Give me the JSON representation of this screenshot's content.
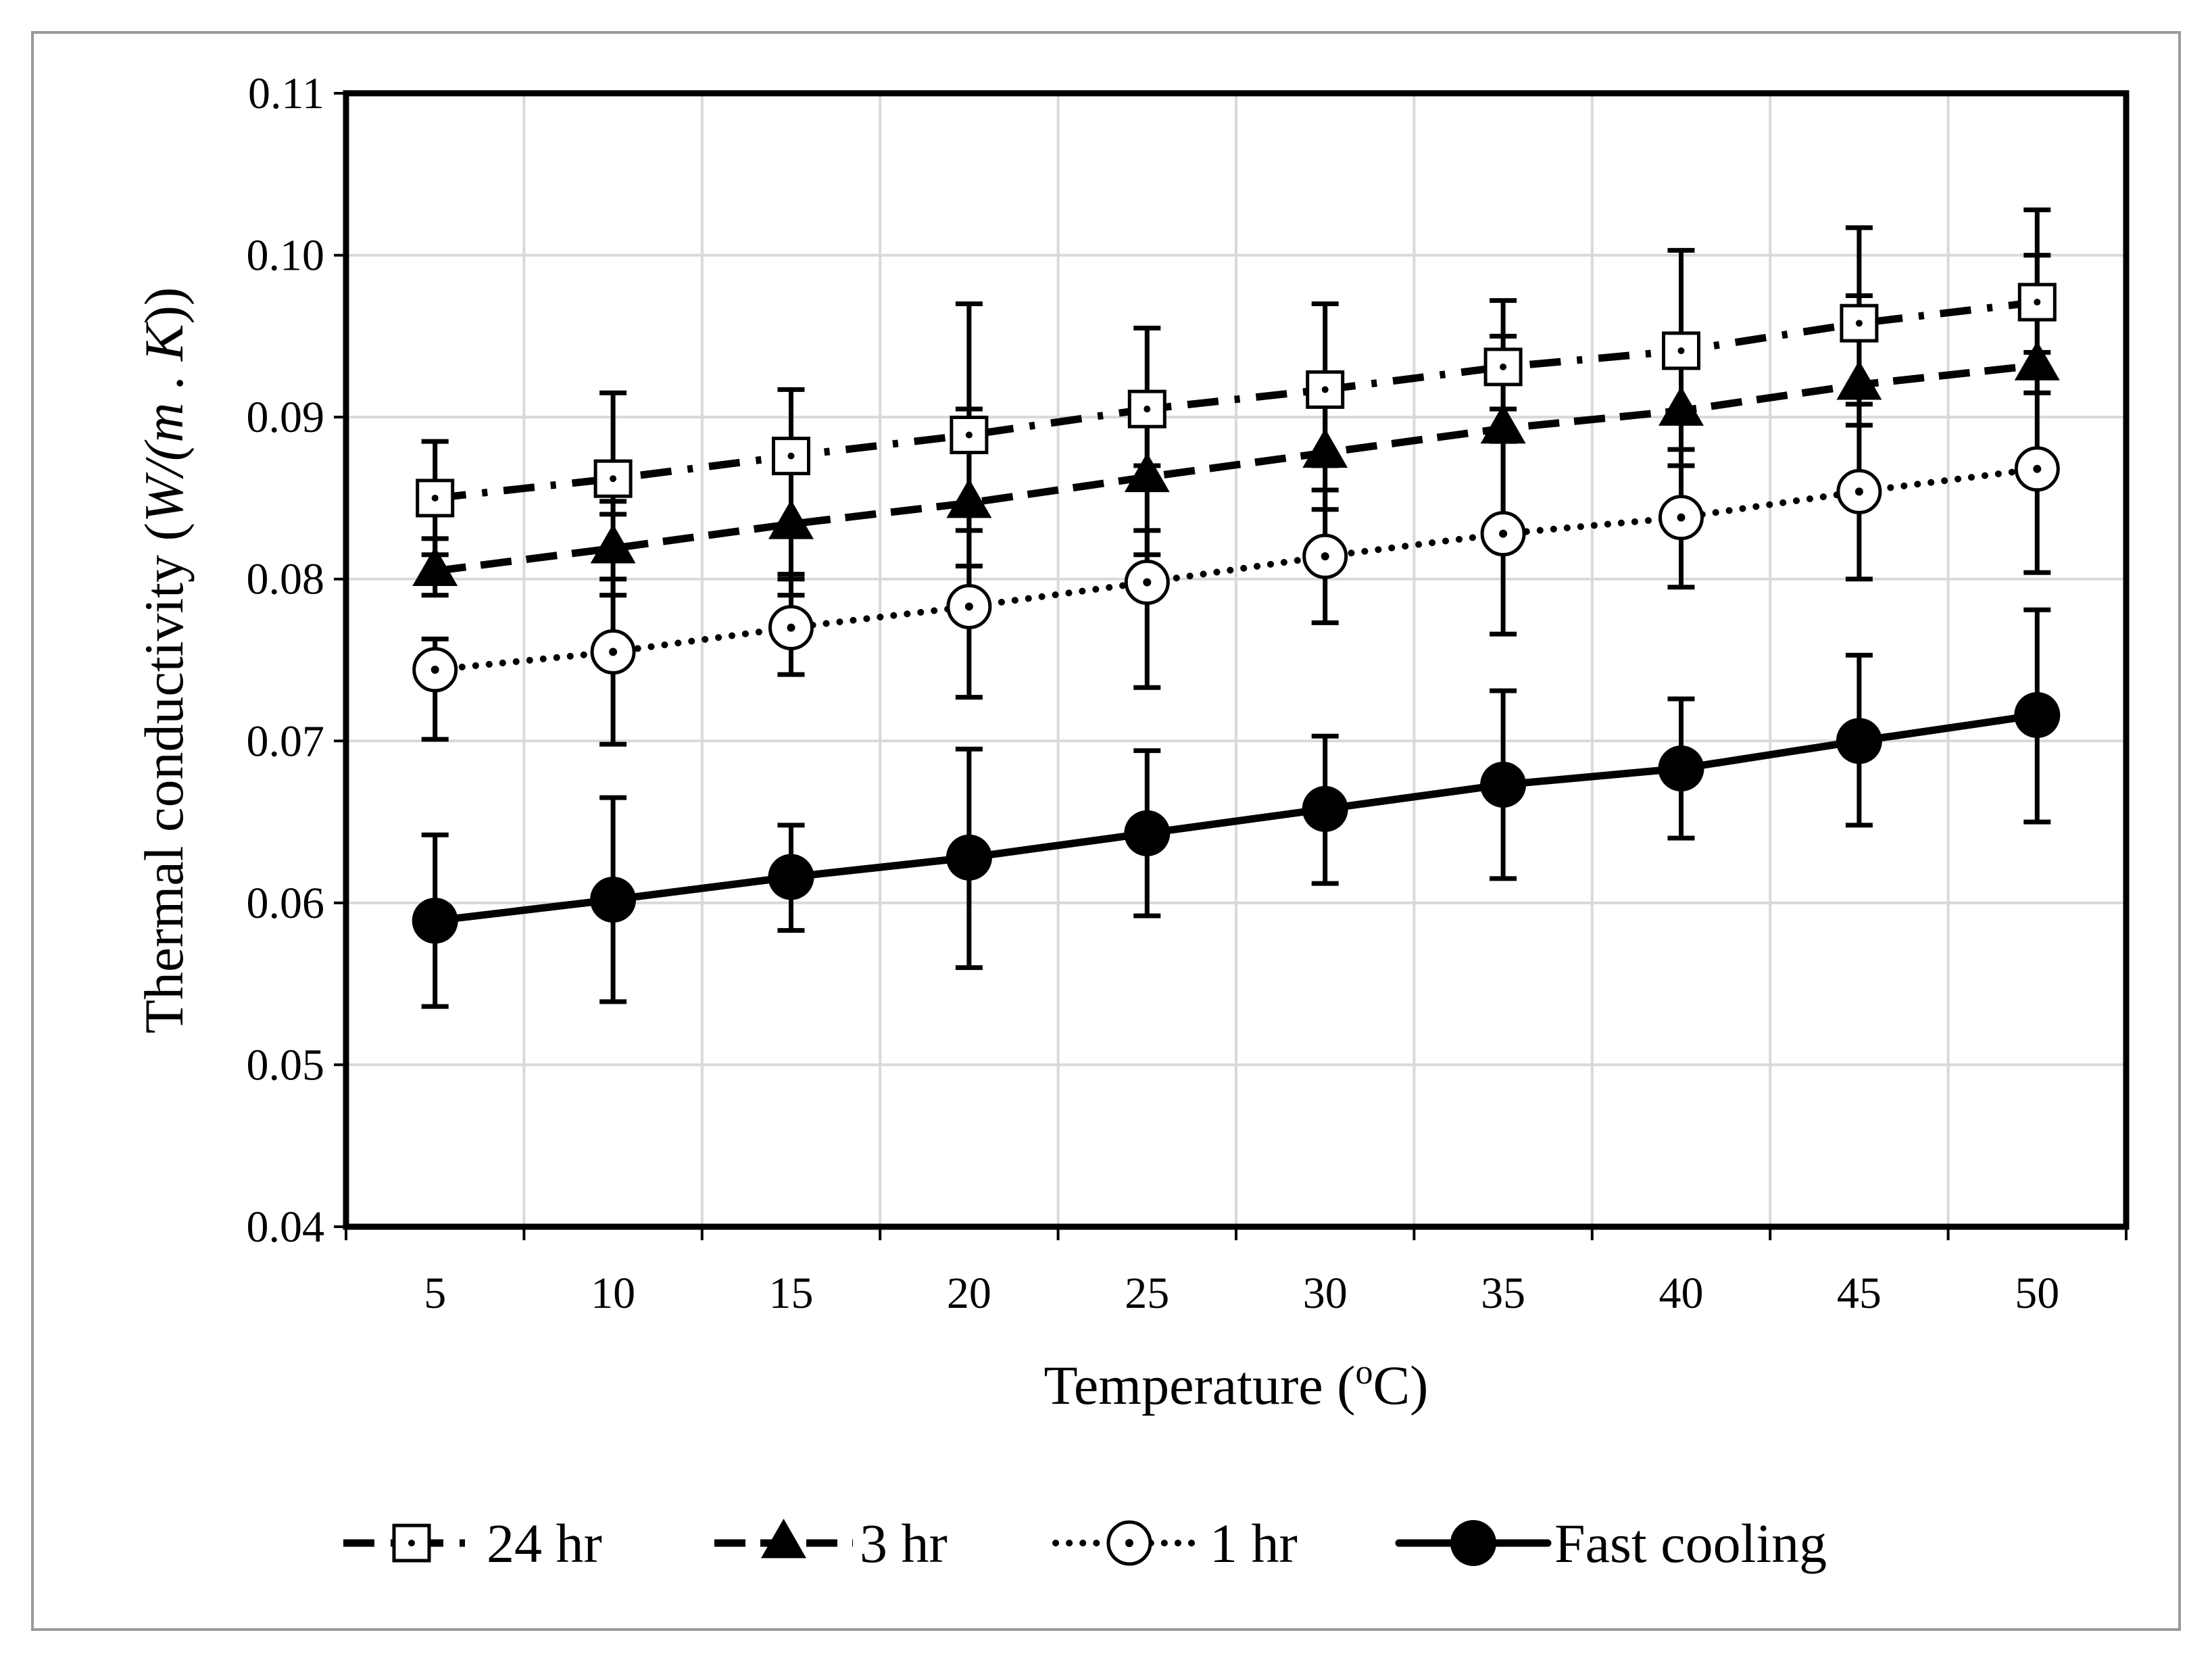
{
  "chart_data": {
    "type": "line",
    "title": "",
    "xlabel": "Temperature (oC)",
    "xlabel_parts": {
      "prefix": "Temperature (",
      "superscript": "o",
      "suffix": "C)"
    },
    "ylabel": "Thermal conductivity (W/(m . K))",
    "ylabel_parts": {
      "prefix": "Thermal conductivity (",
      "italic": "W/(m . K",
      "suffix": "))"
    },
    "x": [
      5,
      10,
      15,
      20,
      25,
      30,
      35,
      40,
      45,
      50
    ],
    "x_tick_labels": [
      "5",
      "10",
      "15",
      "20",
      "25",
      "30",
      "35",
      "40",
      "45",
      "50"
    ],
    "ylim": [
      0.04,
      0.11
    ],
    "y_tick_labels": [
      "0.04",
      "0.05",
      "0.06",
      "0.07",
      "0.08",
      "0.09",
      "0.10",
      "0.11"
    ],
    "grid": true,
    "legend_position": "bottom",
    "series": [
      {
        "name": "24 hr",
        "marker": "open-square-dot",
        "line": "dash-dot",
        "values": [
          0.085,
          0.0862,
          0.0876,
          0.0889,
          0.0905,
          0.0917,
          0.0931,
          0.0941,
          0.0958,
          0.0971
        ],
        "error_low": [
          0.0815,
          0.084,
          0.08,
          0.0808,
          0.087,
          0.087,
          0.0905,
          0.088,
          0.0918,
          0.094
        ],
        "error_high": [
          0.0885,
          0.0915,
          0.0917,
          0.097,
          0.0955,
          0.097,
          0.0972,
          0.1003,
          0.1017,
          0.1028
        ]
      },
      {
        "name": "3 hr",
        "marker": "filled-triangle",
        "line": "dashed",
        "values": [
          0.0805,
          0.0819,
          0.0834,
          0.0847,
          0.0863,
          0.0878,
          0.0893,
          0.0904,
          0.092,
          0.0932
        ],
        "error_low": [
          0.079,
          0.079,
          0.079,
          0.0785,
          0.0815,
          0.0843,
          0.0838,
          0.087,
          0.0895,
          0.0915
        ],
        "error_high": [
          0.0825,
          0.0848,
          0.0876,
          0.0905,
          0.0915,
          0.0915,
          0.095,
          0.094,
          0.0975,
          0.1
        ]
      },
      {
        "name": "1 hr",
        "marker": "open-circle-dot",
        "line": "dotted",
        "values": [
          0.0744,
          0.0755,
          0.077,
          0.0783,
          0.0798,
          0.0814,
          0.0828,
          0.0838,
          0.0854,
          0.0868
        ],
        "error_low": [
          0.0701,
          0.0698,
          0.0741,
          0.0727,
          0.0733,
          0.0773,
          0.0766,
          0.0795,
          0.08,
          0.0804
        ],
        "error_high": [
          0.0763,
          0.08,
          0.0803,
          0.083,
          0.083,
          0.0855,
          0.0885,
          0.088,
          0.0908,
          0.093
        ]
      },
      {
        "name": "Fast cooling",
        "marker": "filled-circle",
        "line": "solid",
        "values": [
          0.0589,
          0.0602,
          0.0616,
          0.0628,
          0.0643,
          0.0658,
          0.0673,
          0.0683,
          0.07,
          0.0716
        ],
        "error_low": [
          0.0536,
          0.0539,
          0.0583,
          0.056,
          0.0592,
          0.0612,
          0.0615,
          0.064,
          0.0648,
          0.065
        ],
        "error_high": [
          0.0642,
          0.0665,
          0.0648,
          0.0695,
          0.0694,
          0.0703,
          0.0731,
          0.0726,
          0.0753,
          0.0781
        ]
      }
    ]
  }
}
